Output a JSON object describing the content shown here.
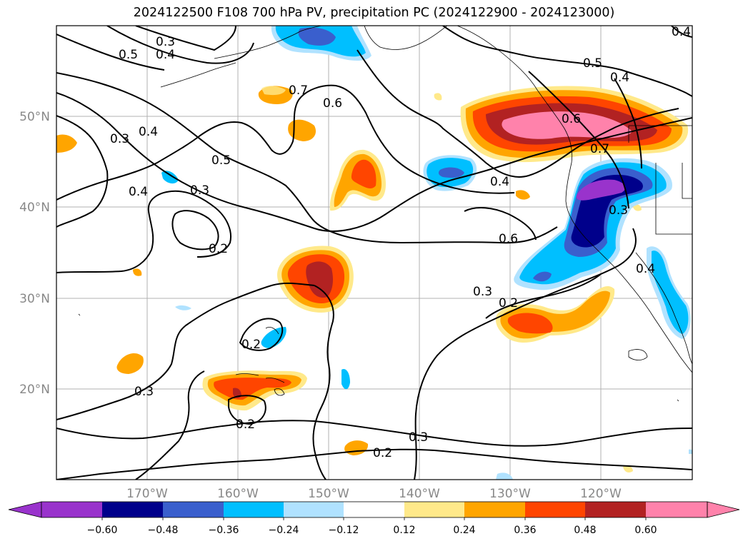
{
  "title": "2024122500 F108 700 hPa PV, precipitation PC (2024122900 - 2024123000)",
  "map": {
    "lon_labels": [
      "170°W",
      "160°W",
      "150°W",
      "140°W",
      "130°W",
      "120°W"
    ],
    "lat_labels": [
      "50°N",
      "40°N",
      "30°N",
      "20°N"
    ],
    "grid": true,
    "contour_labels": [
      "0.3",
      "0.4",
      "0.5",
      "0.7",
      "0.6",
      "0.3",
      "0.4",
      "0.5",
      "0.4",
      "0.3",
      "0.2",
      "0.3",
      "0.2",
      "0.2",
      "0.3",
      "0.2",
      "0.4",
      "0.6",
      "0.3",
      "0.2",
      "0.5",
      "0.4",
      "0.7",
      "0.6",
      "0.3",
      "0.4",
      "0.4"
    ]
  },
  "colorbar": {
    "ticks": [
      "−0.60",
      "−0.48",
      "−0.36",
      "−0.24",
      "−0.12",
      "0.12",
      "0.24",
      "0.36",
      "0.48",
      "0.60"
    ],
    "colors": [
      "#9933cc",
      "#00008b",
      "#3a5fcd",
      "#00bfff",
      "#b0e2ff",
      "#ffffff",
      "#ffe98a",
      "#ffa500",
      "#ff4500",
      "#b22222",
      "#ff82ab"
    ]
  }
}
